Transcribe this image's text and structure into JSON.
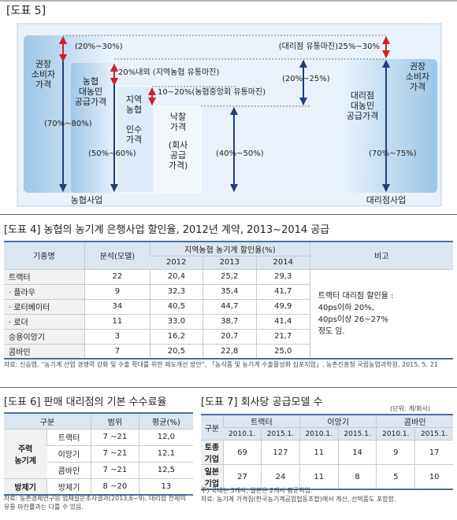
{
  "figure5": {
    "title": "[도표 5]",
    "nh_retail": [
      "권장",
      "소비자",
      "가격"
    ],
    "nh_supply": [
      "농협",
      "대농민",
      "공급가격"
    ],
    "local_nh": [
      "지역",
      "농협",
      "인수",
      "가격"
    ],
    "bid": [
      "낙찰",
      "가격"
    ],
    "company_supply": [
      "(회사",
      "공급",
      "가격)"
    ],
    "dealer_supply": [
      "대리점",
      "대농민",
      "공급가격"
    ],
    "dealer_retail": [
      "권장",
      "소비자",
      "가격"
    ],
    "margin_top": "(20%~30%)",
    "range_nh_retail": "(70%~80%)",
    "range_nh_supply": "(50%~60%)",
    "margin_local": "20%내외 (지역농협 유통마진)",
    "margin_central": "10~20%(농협중앙회 유통마진)",
    "margin_dealer": "(대리점 유통마진)25%~30%",
    "range_mid": "(20%~25%)",
    "range_bid": "(40%~50%)",
    "range_dealer": "(70%~75%)",
    "label_nh": "농협사업",
    "label_dealer": "대리점사업"
  },
  "table4": {
    "title": "[도표 4] 농협의 농기계 은행사업 할인율, 2012년 계약, 2013~2014 공급",
    "header": {
      "model": "기종명",
      "count": "분석(모델)",
      "rate": "지역농협 농기계 할인율(%)",
      "years": [
        "2012",
        "2013",
        "2014"
      ],
      "note": "비고"
    },
    "rows": [
      [
        "트랙터",
        "22",
        "20,4",
        "25,2",
        "29,3"
      ],
      [
        "· 플라우",
        "9",
        "32,3",
        "35,4",
        "41,7"
      ],
      [
        "· 로터베이터",
        "34",
        "40,5",
        "44,7",
        "49,9"
      ],
      [
        "· 로더",
        "11",
        "33,0",
        "38,7",
        "41,4"
      ],
      [
        "승용이앙기",
        "3",
        "16,2",
        "20,7",
        "21,7"
      ],
      [
        "콤바인",
        "7",
        "20,5",
        "22,8",
        "25,0"
      ]
    ],
    "remark": [
      "트랙터 대리점 할인율 :",
      "40ps이하 20%,",
      "40ps이상 26~27%",
      "정도 임."
    ],
    "source": "자료: 신승엽, “농기계 산업 경쟁력 강화 및 수출 확대를 위한 제도개선 방안”, 「농식품 및 농기계 수출활성화 심포지엄」, 농촌진흥청 국립농업과학원, 2015, 5, 21"
  },
  "table6": {
    "title": "[도표 6] 판매 대리점의 기본 수수료율",
    "header": [
      "구분",
      "범위",
      "평균(%)"
    ],
    "groups": [
      {
        "name": [
          "주력",
          "농기계"
        ],
        "rows": [
          [
            "트랙터",
            "7 ~21",
            "12,0"
          ],
          [
            "이앙기",
            "7 ~21",
            "12,1"
          ],
          [
            "콤바인",
            "7 ~21",
            "12,5"
          ]
        ]
      },
      {
        "name": [
          "방제기"
        ],
        "rows": [
          [
            "방제기",
            "8 ~20",
            "13"
          ]
        ]
      }
    ],
    "source": "자료: 농촌경제연구원 업체설문조사결과(2013,6~9), 대리점 전체의 유통 마진률과는 다를 수 있음."
  },
  "table7": {
    "title": "[도표 7] 회사당 공급모델 수",
    "unit": "(단위: 개/회사)",
    "header": {
      "label": "구분",
      "products": [
        {
          "name": "트랙터",
          "dates": [
            "2010.1.",
            "2015.1."
          ]
        },
        {
          "name": "이앙기",
          "dates": [
            "2010.1.",
            "2015.1."
          ]
        },
        {
          "name": "콤바인",
          "dates": [
            "2010.1.",
            "2015.1."
          ]
        }
      ]
    },
    "rows": [
      {
        "name": [
          "토종",
          "기업"
        ],
        "values": [
          "69",
          "127",
          "11",
          "14",
          "9",
          "17"
        ]
      },
      {
        "name": [
          "일본",
          "기업"
        ],
        "values": [
          "27",
          "24",
          "11",
          "8",
          "5",
          "10"
        ]
      }
    ],
    "notes": [
      "주) 국내는 3개사, 일본은 2개사 평균치임.",
      "자료: 농기계 가격집(한국농기계공업협동조합)에서 계산, 선택품도 포함함."
    ]
  }
}
